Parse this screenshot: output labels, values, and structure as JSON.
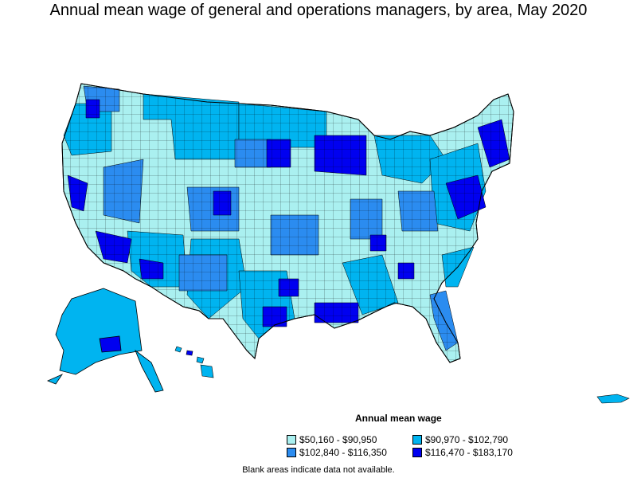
{
  "title": "Annual mean wage of general and operations managers, by area, May 2020",
  "legend": {
    "title": "Annual mean wage",
    "items": [
      {
        "label": "$50,160 - $90,950",
        "color": "#aaf0f0"
      },
      {
        "label": "$90,970 - $102,790",
        "color": "#00b4f0"
      },
      {
        "label": "$102,840 - $116,350",
        "color": "#2b8cf0"
      },
      {
        "label": "$116,470 - $183,170",
        "color": "#0000f0"
      }
    ]
  },
  "note": "Blank areas indicate data not available."
}
